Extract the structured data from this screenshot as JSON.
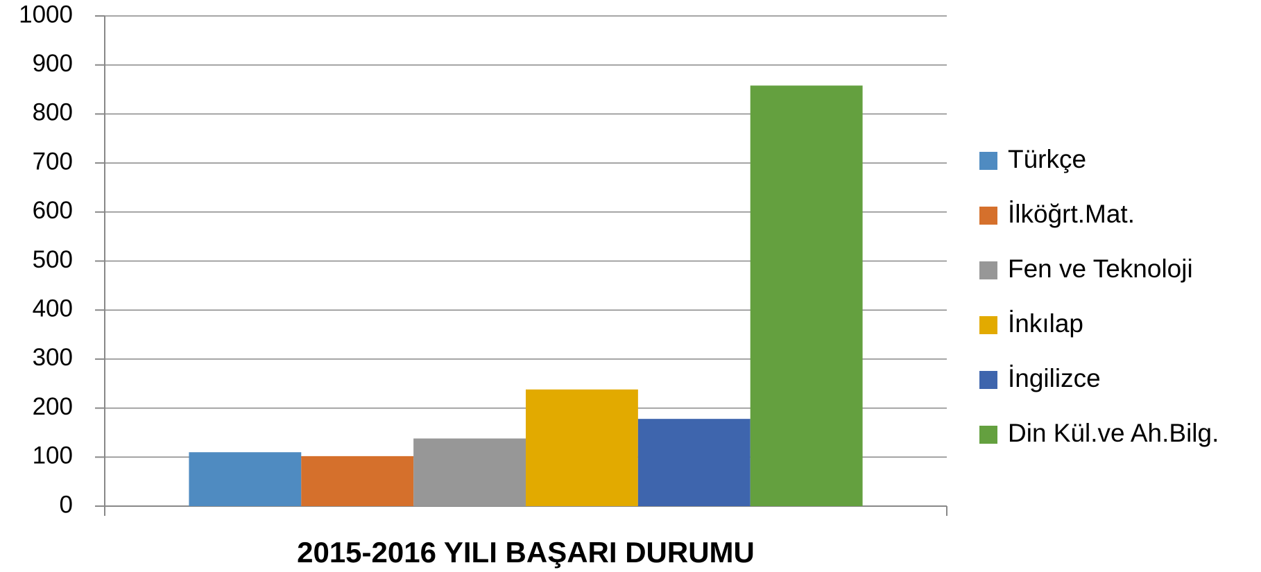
{
  "chart_data": {
    "type": "bar",
    "categories": [
      "2015-2016 YILI BAŞARI DURUMU"
    ],
    "series": [
      {
        "name": "Türkçe",
        "color": "#4f8bc1",
        "values": [
          110
        ]
      },
      {
        "name": "İlköğrt.Mat.",
        "color": "#d5702c",
        "values": [
          102
        ]
      },
      {
        "name": "Fen ve Teknoloji",
        "color": "#979797",
        "values": [
          138
        ]
      },
      {
        "name": "İnkılap",
        "color": "#e2aa00",
        "values": [
          238
        ]
      },
      {
        "name": "İngilizce",
        "color": "#3e65ad",
        "values": [
          178
        ]
      },
      {
        "name": "Din Kül.ve Ah.Bilg.",
        "color": "#64a03f",
        "values": [
          858
        ]
      }
    ],
    "ylim": [
      0,
      1000
    ],
    "yticks": [
      0,
      100,
      200,
      300,
      400,
      500,
      600,
      700,
      800,
      900,
      1000
    ],
    "grid": true,
    "legend": "right"
  }
}
